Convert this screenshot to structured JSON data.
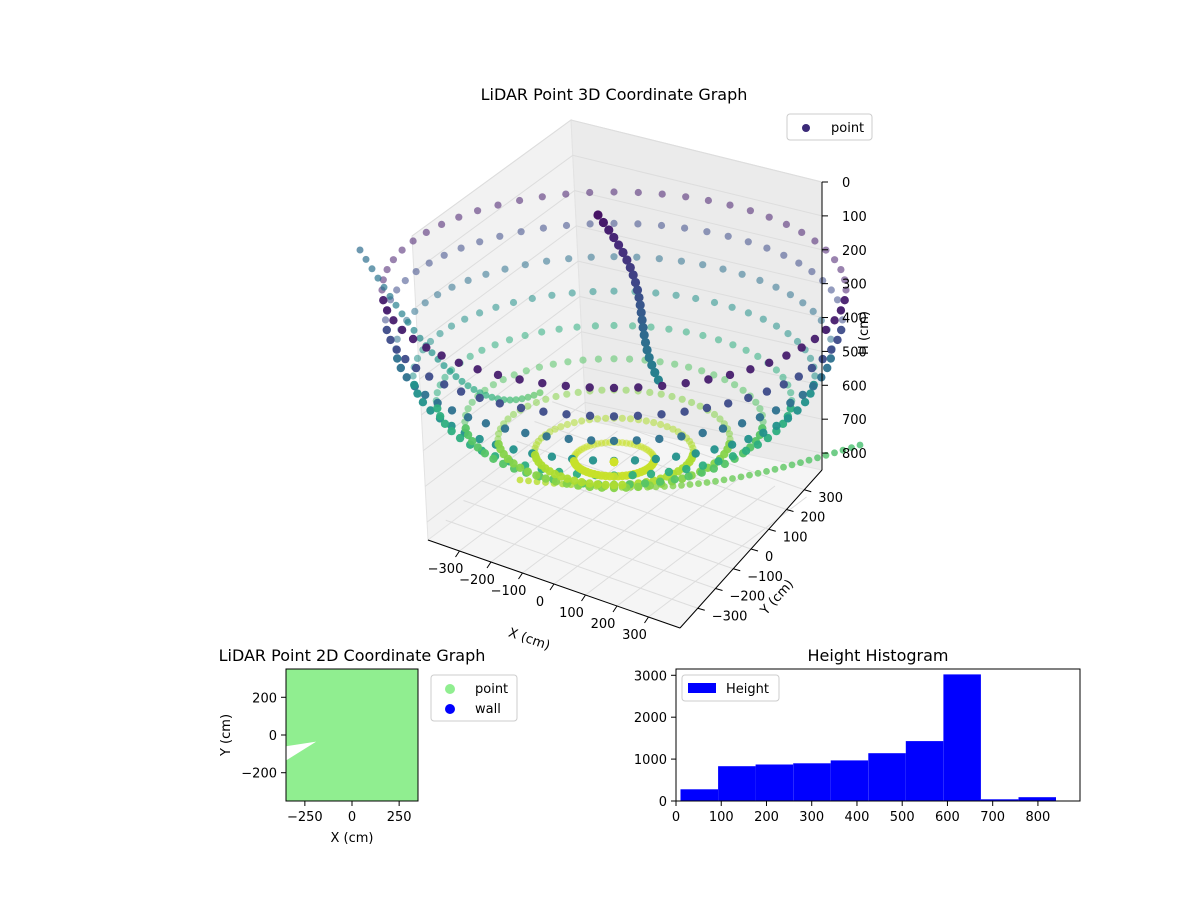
{
  "chart_data": [
    {
      "type": "scatter",
      "title": "LiDAR Point 3D Coordinate Graph",
      "xlabel": "X (cm)",
      "ylabel": "Y (cm)",
      "zlabel": "H (cm)",
      "x_ticks": [
        -300,
        -200,
        -100,
        0,
        100,
        200,
        300
      ],
      "y_ticks": [
        -300,
        -200,
        -100,
        0,
        100,
        200,
        300
      ],
      "z_ticks": [
        0,
        100,
        200,
        300,
        400,
        500,
        600,
        700,
        800
      ],
      "z_inverted": true,
      "colormap": "viridis",
      "legend": {
        "entries": [
          "point"
        ],
        "placement": "top-right"
      },
      "legend_color": "#3b2a78",
      "bowl_rings": {
        "angles_deg": [
          0,
          10,
          20,
          30,
          40,
          50,
          60,
          70,
          80,
          90
        ],
        "columns": 60
      }
    },
    {
      "type": "scatter",
      "title": "LiDAR Point 2D Coordinate Graph",
      "xlabel": "X (cm)",
      "ylabel": "Y (cm)",
      "xlim": [
        -350,
        350
      ],
      "ylim": [
        -350,
        350
      ],
      "x_ticks": [
        -250,
        0,
        250
      ],
      "y_ticks": [
        -200,
        0,
        200
      ],
      "series": [
        {
          "name": "point",
          "color": "#90ee90"
        },
        {
          "name": "wall",
          "color": "#0000ff"
        }
      ],
      "legend": {
        "placement": "outside-right"
      },
      "empty_wedge": [
        [
          -350,
          -60
        ],
        [
          -190,
          -35
        ],
        [
          -350,
          -135
        ]
      ]
    },
    {
      "type": "bar",
      "title": "Height Histogram",
      "series": [
        {
          "name": "Height",
          "color": "#0000ff",
          "bins": [
            {
              "x0": 10,
              "x1": 93,
              "count": 280
            },
            {
              "x0": 93,
              "x1": 176,
              "count": 830
            },
            {
              "x0": 176,
              "x1": 259,
              "count": 870
            },
            {
              "x0": 259,
              "x1": 342,
              "count": 900
            },
            {
              "x0": 342,
              "x1": 425,
              "count": 970
            },
            {
              "x0": 425,
              "x1": 508,
              "count": 1140
            },
            {
              "x0": 508,
              "x1": 591,
              "count": 1430
            },
            {
              "x0": 591,
              "x1": 674,
              "count": 3020
            },
            {
              "x0": 674,
              "x1": 757,
              "count": 40
            },
            {
              "x0": 757,
              "x1": 840,
              "count": 90
            }
          ]
        }
      ],
      "xlim": [
        0,
        893
      ],
      "ylim": [
        0,
        3150
      ],
      "x_ticks": [
        0,
        100,
        200,
        300,
        400,
        500,
        600,
        700,
        800
      ],
      "y_ticks": [
        0,
        1000,
        2000,
        3000
      ],
      "legend": {
        "placement": "top-left"
      }
    }
  ]
}
